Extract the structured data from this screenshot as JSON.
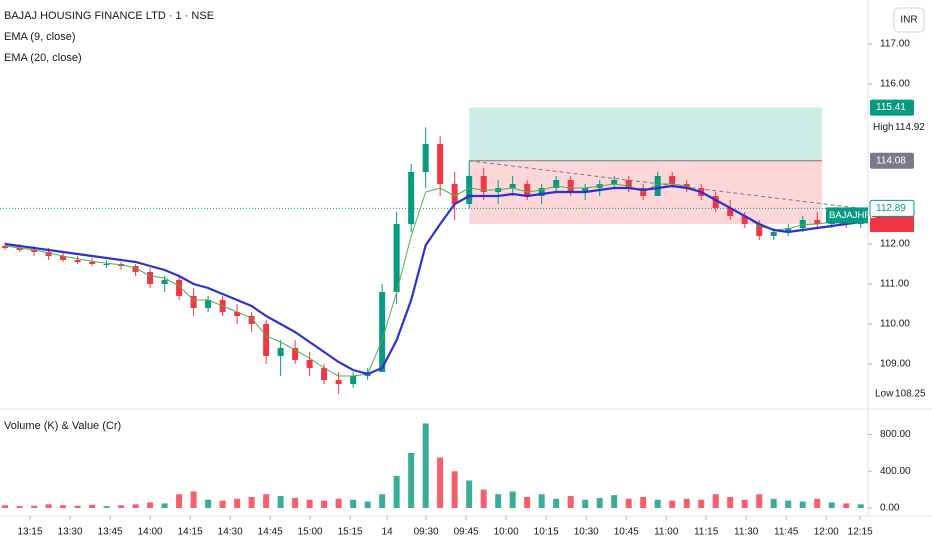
{
  "header": {
    "title": "BAJAJ HOUSING FINANCE LTD · 1 · NSE",
    "indicators": [
      "EMA (9, close)",
      "EMA (20, close)"
    ],
    "currency": "INR",
    "symbol": "BAJAJHFL",
    "high_label": "High",
    "low_label": "Low"
  },
  "chart_data": [
    {
      "type": "candlestick",
      "up_color": "#089981",
      "down_color": "#f23645",
      "xlim": [
        -0.35,
        59.5
      ],
      "ylim": [
        107.9,
        118.1
      ],
      "xticks": [
        {
          "value": 1.72,
          "label": "13:15"
        },
        {
          "value": 4.48,
          "label": "13:30"
        },
        {
          "value": 7.24,
          "label": "13:45"
        },
        {
          "value": 10.0,
          "label": "14:00"
        },
        {
          "value": 12.76,
          "label": "14:15"
        },
        {
          "value": 15.52,
          "label": "14:30"
        },
        {
          "value": 18.28,
          "label": "14:45"
        },
        {
          "value": 21.03,
          "label": "15:00"
        },
        {
          "value": 23.79,
          "label": "15:15"
        },
        {
          "value": 26.34,
          "label": "14"
        },
        {
          "value": 29.03,
          "label": "09:30"
        },
        {
          "value": 31.79,
          "label": "09:45"
        },
        {
          "value": 34.55,
          "label": "10:00"
        },
        {
          "value": 37.31,
          "label": "10:15"
        },
        {
          "value": 40.07,
          "label": "10:30"
        },
        {
          "value": 42.83,
          "label": "10:45"
        },
        {
          "value": 45.59,
          "label": "11:00"
        },
        {
          "value": 48.34,
          "label": "11:15"
        },
        {
          "value": 51.1,
          "label": "11:30"
        },
        {
          "value": 53.86,
          "label": "11:45"
        },
        {
          "value": 56.62,
          "label": "12:00"
        },
        {
          "value": 58.96,
          "label": "12:15"
        }
      ],
      "yticks": [
        {
          "value": 117,
          "label": "117.00"
        },
        {
          "value": 116,
          "label": "116.00"
        },
        {
          "value": 112,
          "label": "112.00"
        },
        {
          "value": 111,
          "label": "111.00"
        },
        {
          "value": 110,
          "label": "110.00"
        },
        {
          "value": 109,
          "label": "109.00"
        }
      ],
      "open": [
        111.95,
        111.9,
        111.85,
        111.8,
        111.7,
        111.6,
        111.55,
        111.5,
        111.5,
        111.45,
        111.3,
        111.0,
        111.1,
        110.7,
        110.4,
        110.6,
        110.3,
        110.2,
        110.0,
        109.2,
        109.4,
        109.1,
        108.9,
        108.6,
        108.5,
        108.7,
        108.8,
        110.8,
        112.5,
        113.8,
        114.5,
        113.5,
        113.0,
        113.7,
        113.3,
        113.4,
        113.5,
        113.2,
        113.4,
        113.6,
        113.3,
        113.4,
        113.5,
        113.6,
        113.4,
        113.2,
        113.7,
        113.5,
        113.4,
        113.2,
        112.9,
        112.7,
        112.5,
        112.2,
        112.3,
        112.4,
        112.6,
        112.5,
        112.6,
        112.5
      ],
      "high": [
        112.05,
        112.0,
        111.95,
        111.9,
        111.8,
        111.7,
        111.65,
        111.6,
        111.55,
        111.5,
        111.4,
        111.2,
        111.2,
        110.9,
        110.7,
        110.7,
        110.5,
        110.3,
        110.1,
        109.6,
        109.6,
        109.3,
        109.0,
        108.8,
        108.8,
        108.9,
        111.0,
        112.8,
        114.0,
        114.92,
        114.7,
        113.8,
        114.08,
        113.9,
        113.6,
        113.7,
        113.6,
        113.5,
        113.7,
        113.7,
        113.5,
        113.6,
        113.7,
        113.7,
        113.5,
        113.8,
        113.8,
        113.6,
        113.5,
        113.3,
        113.1,
        112.8,
        112.6,
        112.4,
        112.5,
        112.7,
        112.8,
        112.7,
        112.7,
        112.9
      ],
      "low": [
        111.85,
        111.8,
        111.7,
        111.6,
        111.55,
        111.5,
        111.45,
        111.4,
        111.35,
        111.2,
        110.9,
        110.8,
        110.6,
        110.2,
        110.3,
        110.2,
        110.0,
        109.8,
        109.0,
        108.7,
        109.0,
        108.7,
        108.5,
        108.25,
        108.4,
        108.6,
        108.8,
        110.5,
        112.3,
        113.4,
        113.2,
        112.6,
        112.9,
        113.1,
        113.0,
        113.2,
        113.1,
        113.0,
        113.3,
        113.2,
        113.1,
        113.2,
        113.4,
        113.3,
        113.1,
        113.2,
        113.4,
        113.3,
        113.1,
        112.8,
        112.6,
        112.4,
        112.1,
        112.1,
        112.2,
        112.3,
        112.4,
        112.4,
        112.4,
        112.4
      ],
      "close": [
        111.9,
        111.85,
        111.8,
        111.7,
        111.6,
        111.55,
        111.5,
        111.5,
        111.45,
        111.3,
        111.0,
        111.1,
        110.7,
        110.4,
        110.6,
        110.3,
        110.2,
        110.0,
        109.2,
        109.4,
        109.1,
        108.9,
        108.6,
        108.5,
        108.7,
        108.8,
        110.8,
        112.5,
        113.8,
        114.5,
        113.5,
        113.0,
        113.7,
        113.3,
        113.4,
        113.5,
        113.2,
        113.4,
        113.6,
        113.3,
        113.4,
        113.5,
        113.6,
        113.4,
        113.2,
        113.7,
        113.5,
        113.4,
        113.2,
        112.9,
        112.7,
        112.5,
        112.2,
        112.3,
        112.4,
        112.6,
        112.5,
        112.6,
        112.5,
        112.89
      ],
      "series": [
        {
          "name": "EMA (9, close)",
          "color": "#4caf50",
          "values": [
            111.95,
            111.9,
            111.85,
            111.78,
            111.7,
            111.63,
            111.57,
            111.52,
            111.48,
            111.4,
            111.2,
            111.15,
            110.95,
            110.6,
            110.6,
            110.45,
            110.3,
            110.15,
            109.7,
            109.55,
            109.35,
            109.15,
            108.9,
            108.7,
            108.7,
            108.75,
            109.6,
            110.8,
            112.2,
            113.3,
            113.4,
            113.2,
            113.4,
            113.35,
            113.35,
            113.4,
            113.3,
            113.35,
            113.45,
            113.4,
            113.4,
            113.45,
            113.5,
            113.45,
            113.3,
            113.5,
            113.5,
            113.45,
            113.3,
            113.1,
            112.9,
            112.7,
            112.45,
            112.35,
            112.38,
            112.48,
            112.5,
            112.55,
            112.52,
            112.65
          ]
        },
        {
          "name": "EMA (20, close)",
          "color": "#3030d0",
          "values": [
            112.0,
            111.95,
            111.9,
            111.85,
            111.8,
            111.75,
            111.7,
            111.65,
            111.6,
            111.55,
            111.45,
            111.35,
            111.2,
            111.0,
            110.9,
            110.75,
            110.6,
            110.45,
            110.2,
            110.0,
            109.8,
            109.55,
            109.3,
            109.05,
            108.85,
            108.75,
            108.9,
            109.6,
            110.6,
            111.97,
            112.5,
            113.0,
            113.2,
            113.2,
            113.2,
            113.25,
            113.2,
            113.25,
            113.3,
            113.3,
            113.3,
            113.35,
            113.4,
            113.4,
            113.35,
            113.4,
            113.45,
            113.4,
            113.3,
            113.1,
            112.9,
            112.7,
            112.5,
            112.35,
            112.3,
            112.35,
            112.4,
            112.45,
            112.5,
            112.55
          ]
        }
      ],
      "position": {
        "start": 32,
        "end": 56.34,
        "entry": 114.08,
        "target": 115.41,
        "stop": 112.5
      }
    },
    {
      "type": "volume",
      "title": "Volume (K) & Value (Cr)",
      "ylim": [
        0,
        1045
      ],
      "yticks": [
        {
          "value": 800,
          "label": "800.00"
        },
        {
          "value": 400,
          "label": "400.00"
        },
        {
          "value": 0,
          "label": "0.00"
        }
      ],
      "values": [
        30,
        20,
        25,
        40,
        30,
        25,
        35,
        20,
        30,
        40,
        60,
        50,
        150,
        180,
        90,
        80,
        100,
        120,
        150,
        130,
        110,
        90,
        80,
        100,
        90,
        70,
        150,
        350,
        600,
        920,
        550,
        400,
        300,
        200,
        150,
        180,
        120,
        150,
        100,
        130,
        90,
        110,
        140,
        100,
        120,
        90,
        80,
        100,
        90,
        150,
        120,
        90,
        150,
        100,
        80,
        70,
        100,
        60,
        50,
        40
      ]
    }
  ]
}
